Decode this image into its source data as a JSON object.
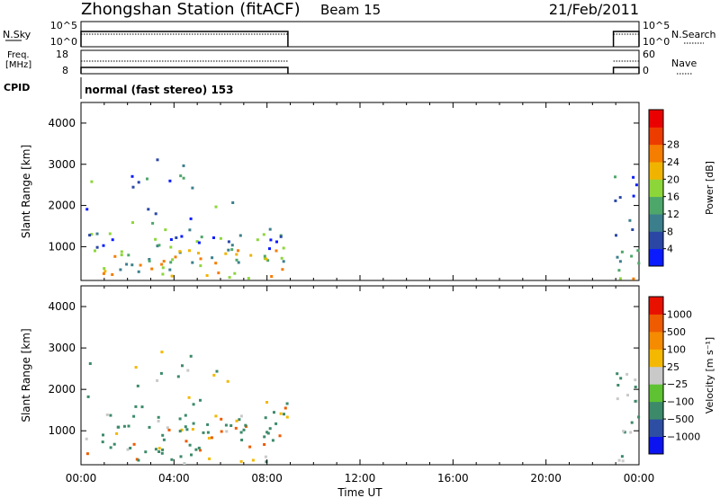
{
  "header": {
    "station": "Zhongshan Station (fitACF)",
    "beam": "Beam 15",
    "date": "21/Feb/2011"
  },
  "aux_panels": {
    "nsky": {
      "label": "N.Sky",
      "ticks": [
        "10^5",
        "10^0"
      ]
    },
    "nsearch": {
      "label": "N.Search",
      "ticks": [
        "10^5",
        "10^0"
      ]
    },
    "freq": {
      "label_top": "Freq.",
      "label_unit": "[MHz]",
      "ticks": [
        "18",
        "8"
      ]
    },
    "nave": {
      "label": "Nave",
      "ticks": [
        "60",
        "0"
      ]
    },
    "cpid": {
      "label": "CPID",
      "mode": "normal (fast stereo) 153"
    }
  },
  "chart_data": [
    {
      "type": "heatmap",
      "quantity": "Power",
      "xlabel": "Time UT",
      "ylabel": "Slant Range [km]",
      "x_ticks": [
        "00:00",
        "04:00",
        "08:00",
        "12:00",
        "16:00",
        "20:00",
        "00:00"
      ],
      "x_range_hours": [
        0,
        24
      ],
      "y_ticks": [
        1000,
        2000,
        3000,
        4000
      ],
      "y_range_km": [
        180,
        4500
      ],
      "data_windows_hours": [
        [
          0.0,
          8.9
        ],
        [
          22.9,
          24.0
        ]
      ],
      "colorbar": {
        "label": "Power [dB]",
        "ticks": [
          "4",
          "8",
          "12",
          "16",
          "20",
          "24",
          "28"
        ],
        "colors": [
          "#0a1cff",
          "#2a47a6",
          "#3b7f8c",
          "#4ea76a",
          "#8dd63a",
          "#f0b400",
          "#f57d00",
          "#ec3c00",
          "#ea0000"
        ]
      }
    },
    {
      "type": "heatmap",
      "quantity": "Velocity",
      "xlabel": "Time UT",
      "ylabel": "Slant Range [km]",
      "x_ticks": [
        "00:00",
        "04:00",
        "08:00",
        "12:00",
        "16:00",
        "20:00",
        "00:00"
      ],
      "x_range_hours": [
        0,
        24
      ],
      "y_ticks": [
        1000,
        2000,
        3000,
        4000
      ],
      "y_range_km": [
        180,
        4500
      ],
      "data_windows_hours": [
        [
          0.0,
          8.9
        ],
        [
          22.9,
          24.0
        ]
      ],
      "colorbar": {
        "label": "Velocity [m s⁻¹]",
        "ticks": [
          "1000",
          "500",
          "100",
          "25",
          "−25",
          "−100",
          "−500",
          "−1000"
        ],
        "colors": [
          "#0b14f0",
          "#2d4ea2",
          "#3c8a6a",
          "#5ec232",
          "#c9c9c9",
          "#f4b800",
          "#f58b00",
          "#ee5b00",
          "#e81100"
        ]
      }
    }
  ]
}
